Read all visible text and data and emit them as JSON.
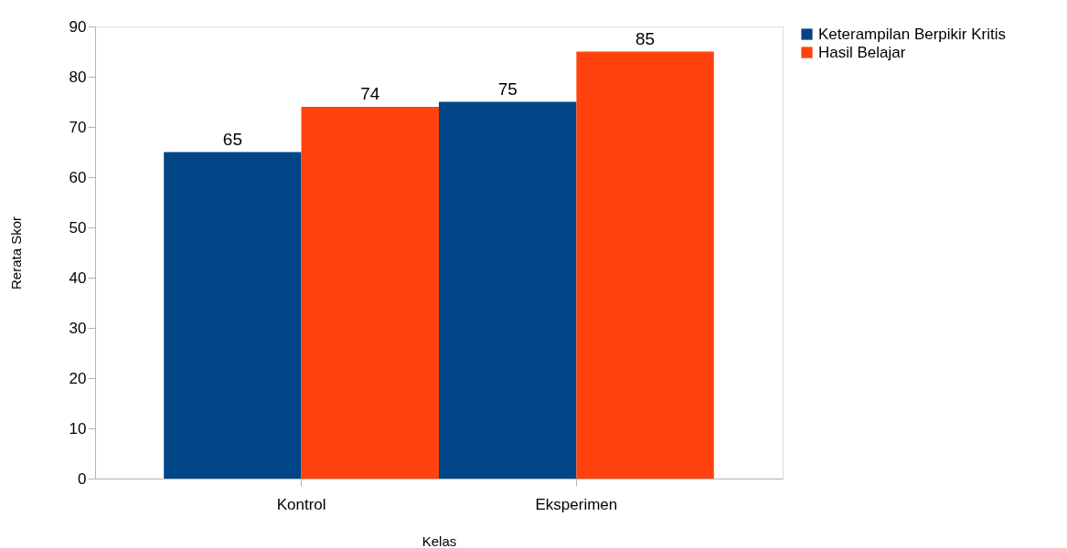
{
  "chart_data": {
    "type": "bar",
    "xlabel": "Kelas",
    "ylabel": "Rerata Skor",
    "categories": [
      "Kontrol",
      "Eksperimen"
    ],
    "series": [
      {
        "name": "Keterampilan Berpikir Kritis",
        "color": "#004586",
        "values": [
          65,
          75
        ]
      },
      {
        "name": "Hasil Belajar",
        "color": "#ff420e",
        "values": [
          74,
          85
        ]
      }
    ],
    "ylim": [
      0,
      90
    ],
    "yticks": [
      0,
      10,
      20,
      30,
      40,
      50,
      60,
      70,
      80,
      90
    ],
    "grid": false,
    "legend": "right",
    "data_labels": true
  }
}
